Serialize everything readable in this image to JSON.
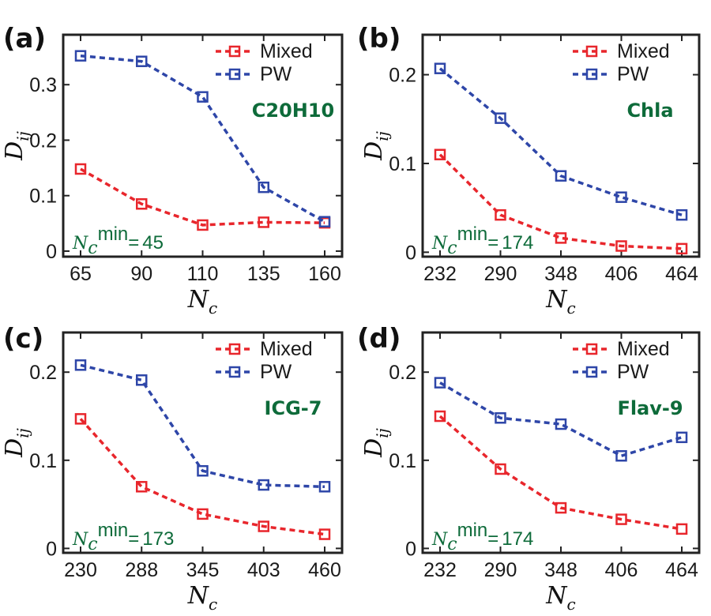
{
  "chart_data": [
    {
      "panel": "(a)",
      "type": "line",
      "molecule": "C20H10",
      "ncmin_value": "45",
      "categories": [
        "65",
        "90",
        "110",
        "135",
        "160"
      ],
      "yticks": [
        "0",
        "0.1",
        "0.2",
        "0.3"
      ],
      "ytick_values": [
        0,
        0.1,
        0.2,
        0.3
      ],
      "ylim": [
        -0.01,
        0.39
      ],
      "series": [
        {
          "name": "Mixed",
          "color": "#e8262c",
          "values": [
            0.148,
            0.085,
            0.047,
            0.052,
            0.051
          ]
        },
        {
          "name": "PW",
          "color": "#2e46a8",
          "values": [
            0.352,
            0.342,
            0.278,
            0.115,
            0.053
          ]
        }
      ]
    },
    {
      "panel": "(b)",
      "type": "line",
      "molecule": "Chla",
      "ncmin_value": "174",
      "categories": [
        "232",
        "290",
        "348",
        "406",
        "464"
      ],
      "yticks": [
        "0",
        "0.1",
        "0.2"
      ],
      "ytick_values": [
        0,
        0.1,
        0.2
      ],
      "ylim": [
        -0.005,
        0.245
      ],
      "series": [
        {
          "name": "Mixed",
          "color": "#e8262c",
          "values": [
            0.11,
            0.042,
            0.016,
            0.007,
            0.004
          ]
        },
        {
          "name": "PW",
          "color": "#2e46a8",
          "values": [
            0.207,
            0.151,
            0.086,
            0.062,
            0.042
          ]
        }
      ]
    },
    {
      "panel": "(c)",
      "type": "line",
      "molecule": "ICG-7",
      "ncmin_value": "173",
      "categories": [
        "230",
        "288",
        "345",
        "403",
        "460"
      ],
      "yticks": [
        "0",
        "0.1",
        "0.2"
      ],
      "ytick_values": [
        0,
        0.1,
        0.2
      ],
      "ylim": [
        -0.005,
        0.245
      ],
      "series": [
        {
          "name": "Mixed",
          "color": "#e8262c",
          "values": [
            0.147,
            0.07,
            0.039,
            0.025,
            0.016
          ]
        },
        {
          "name": "PW",
          "color": "#2e46a8",
          "values": [
            0.208,
            0.191,
            0.088,
            0.072,
            0.07
          ]
        }
      ]
    },
    {
      "panel": "(d)",
      "type": "line",
      "molecule": "Flav-9",
      "ncmin_value": "174",
      "categories": [
        "232",
        "290",
        "348",
        "406",
        "464"
      ],
      "yticks": [
        "0",
        "0.1",
        "0.2"
      ],
      "ytick_values": [
        0,
        0.1,
        0.2
      ],
      "ylim": [
        -0.005,
        0.245
      ],
      "series": [
        {
          "name": "Mixed",
          "color": "#e8262c",
          "values": [
            0.15,
            0.09,
            0.046,
            0.033,
            0.022
          ]
        },
        {
          "name": "PW",
          "color": "#2e46a8",
          "values": [
            0.188,
            0.148,
            0.141,
            0.105,
            0.126
          ]
        }
      ]
    }
  ],
  "axis": {
    "xlabel_var": "N",
    "xlabel_sub": "c",
    "ylabel_var": "D",
    "ylabel_sub": "ij"
  },
  "annotation": {
    "ncmin_var": "N",
    "ncmin_sub": "c",
    "ncmin_sup": "min",
    "ncmin_eq": "="
  }
}
